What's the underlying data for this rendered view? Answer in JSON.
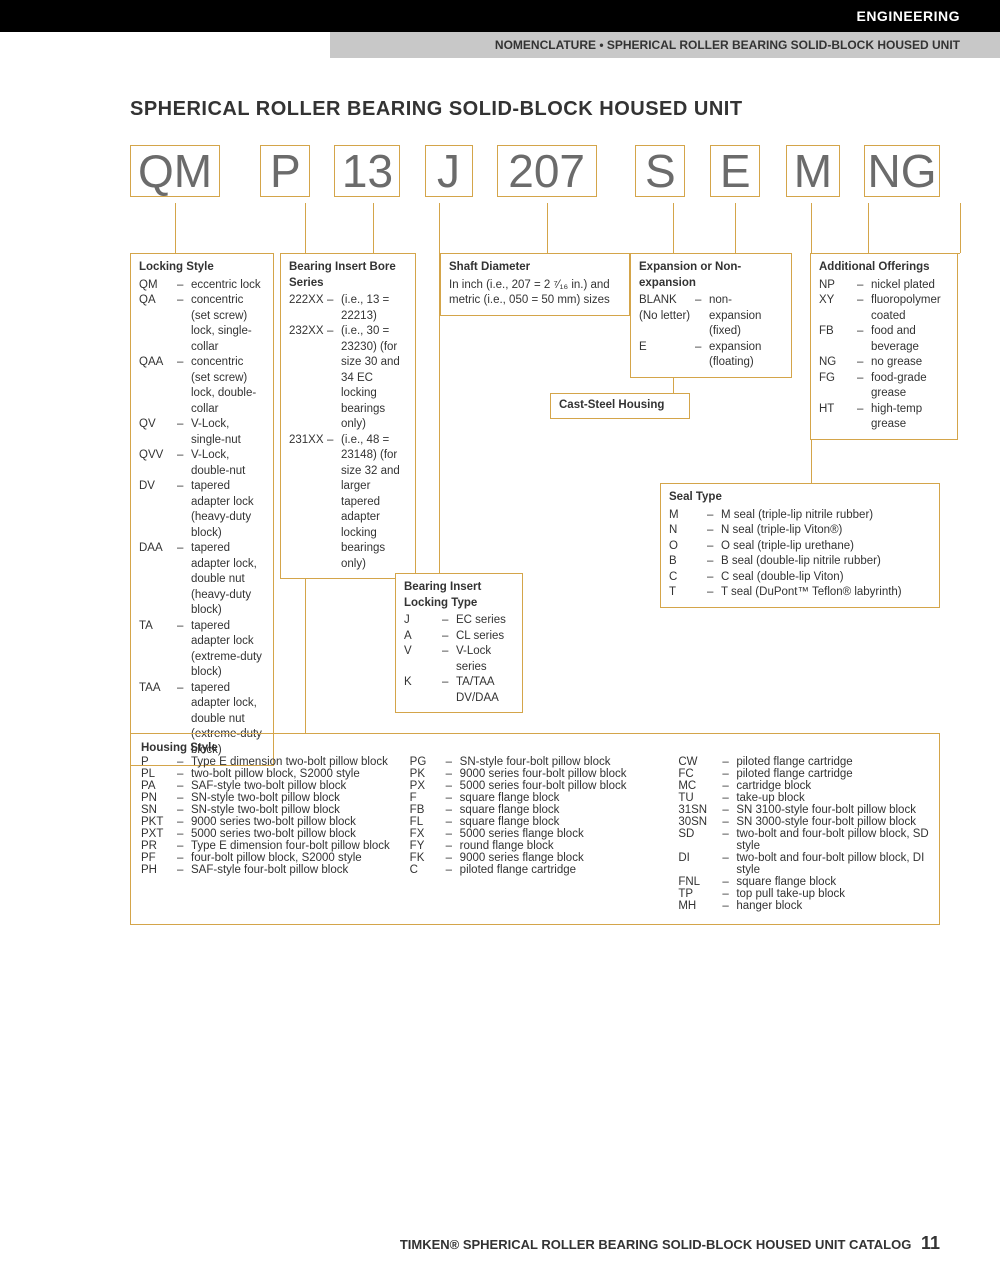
{
  "header": {
    "section": "ENGINEERING",
    "subtitle": "NOMENCLATURE • SPHERICAL ROLLER BEARING SOLID-BLOCK HOUSED UNIT"
  },
  "title": "SPHERICAL ROLLER BEARING SOLID-BLOCK HOUSED UNIT",
  "code": {
    "qm": "QM",
    "p": "P",
    "n13": "13",
    "j": "J",
    "n207": "207",
    "s": "S",
    "e": "E",
    "m": "M",
    "ng": "NG"
  },
  "locking_style": {
    "title": "Locking Style",
    "items": [
      {
        "c": "QM",
        "t": "eccentric lock"
      },
      {
        "c": "QA",
        "t": "concentric (set screw) lock, single-collar"
      },
      {
        "c": "QAA",
        "t": "concentric (set screw) lock, double-collar"
      },
      {
        "c": "QV",
        "t": "V-Lock, single-nut"
      },
      {
        "c": "QVV",
        "t": "V-Lock, double-nut"
      },
      {
        "c": "DV",
        "t": "tapered adapter lock (heavy-duty block)"
      },
      {
        "c": "DAA",
        "t": "tapered adapter lock, double nut (heavy-duty block)"
      },
      {
        "c": "TA",
        "t": "tapered adapter lock (extreme-duty block)"
      },
      {
        "c": "TAA",
        "t": "tapered adapter lock, double nut (extreme-duty block)"
      }
    ]
  },
  "bore_series": {
    "title": "Bearing Insert Bore Series",
    "items": [
      {
        "c": "222XX",
        "t": "(i.e., 13 = 22213)"
      },
      {
        "c": "232XX",
        "t": "(i.e., 30 = 23230) (for size 30 and 34 EC locking bearings only)"
      },
      {
        "c": "231XX",
        "t": "(i.e., 48 = 23148) (for size 32 and larger tapered adapter locking bearings only)"
      }
    ]
  },
  "locking_type": {
    "title": "Bearing Insert Locking Type",
    "items": [
      {
        "c": "J",
        "t": "EC series"
      },
      {
        "c": "A",
        "t": "CL series"
      },
      {
        "c": "V",
        "t": "V-Lock series"
      },
      {
        "c": "K",
        "t": "TA/TAA DV/DAA"
      }
    ]
  },
  "shaft": {
    "title": "Shaft Diameter",
    "text": "In inch (i.e., 207 = 2 ⁷⁄₁₆ in.) and metric (i.e., 050 = 50 mm) sizes"
  },
  "cast_steel": {
    "title": "Cast-Steel Housing"
  },
  "expansion": {
    "title": "Expansion or Non-expansion",
    "items": [
      {
        "c": "BLANK (No letter)",
        "t": "non-expansion (fixed)"
      },
      {
        "c": "E",
        "t": "expansion (floating)"
      }
    ]
  },
  "seal": {
    "title": "Seal Type",
    "items": [
      {
        "c": "M",
        "t": "M seal (triple-lip nitrile rubber)"
      },
      {
        "c": "N",
        "t": "N seal (triple-lip Viton®)"
      },
      {
        "c": "O",
        "t": "O seal (triple-lip urethane)"
      },
      {
        "c": "B",
        "t": "B seal (double-lip nitrile rubber)"
      },
      {
        "c": "C",
        "t": "C seal (double-lip Viton)"
      },
      {
        "c": "T",
        "t": "T seal (DuPont™ Teflon® labyrinth)"
      }
    ]
  },
  "additional": {
    "title": "Additional Offerings",
    "items": [
      {
        "c": "NP",
        "t": "nickel plated"
      },
      {
        "c": "XY",
        "t": "fluoropolymer coated"
      },
      {
        "c": "FB",
        "t": "food and beverage"
      },
      {
        "c": "NG",
        "t": "no grease"
      },
      {
        "c": "FG",
        "t": "food-grade grease"
      },
      {
        "c": "HT",
        "t": "high-temp grease"
      }
    ]
  },
  "housing": {
    "title": "Housing Style",
    "col1": [
      {
        "c": "P",
        "t": "Type E dimension two-bolt pillow block"
      },
      {
        "c": "PL",
        "t": "two-bolt pillow block, S2000 style"
      },
      {
        "c": "PA",
        "t": "SAF-style two-bolt pillow block"
      },
      {
        "c": "PN",
        "t": "SN-style two-bolt pillow block"
      },
      {
        "c": "SN",
        "t": "SN-style two-bolt pillow block"
      },
      {
        "c": "PKT",
        "t": "9000 series two-bolt pillow block"
      },
      {
        "c": "PXT",
        "t": "5000 series two-bolt pillow block"
      },
      {
        "c": "PR",
        "t": "Type E dimension four-bolt pillow block"
      },
      {
        "c": "PF",
        "t": "four-bolt pillow block, S2000 style"
      },
      {
        "c": "PH",
        "t": "SAF-style four-bolt pillow block"
      }
    ],
    "col2": [
      {
        "c": "PG",
        "t": "SN-style four-bolt pillow block"
      },
      {
        "c": "PK",
        "t": "9000 series four-bolt pillow block"
      },
      {
        "c": "PX",
        "t": "5000 series four-bolt pillow block"
      },
      {
        "c": "F",
        "t": "square flange block"
      },
      {
        "c": "FB",
        "t": "square flange block"
      },
      {
        "c": "FL",
        "t": "square flange block"
      },
      {
        "c": "FX",
        "t": "5000 series flange block"
      },
      {
        "c": "FY",
        "t": "round flange block"
      },
      {
        "c": "FK",
        "t": "9000 series flange block"
      },
      {
        "c": "C",
        "t": "piloted flange cartridge"
      }
    ],
    "col3": [
      {
        "c": "CW",
        "t": "piloted flange cartridge"
      },
      {
        "c": "FC",
        "t": "piloted flange cartridge"
      },
      {
        "c": "MC",
        "t": "cartridge block"
      },
      {
        "c": "TU",
        "t": "take-up block"
      },
      {
        "c": "31SN",
        "t": "SN 3100-style four-bolt pillow block"
      },
      {
        "c": "30SN",
        "t": "SN 3000-style four-bolt pillow block"
      },
      {
        "c": "SD",
        "t": "two-bolt and four-bolt pillow block, SD style"
      },
      {
        "c": "DI",
        "t": "two-bolt and four-bolt pillow block, DI style"
      },
      {
        "c": "FNL",
        "t": "square flange block"
      },
      {
        "c": "TP",
        "t": "top pull take-up block"
      },
      {
        "c": "MH",
        "t": "hanger block"
      }
    ]
  },
  "footer": {
    "text": "TIMKEN® SPHERICAL ROLLER BEARING SOLID-BLOCK HOUSED UNIT CATALOG",
    "page": "11"
  }
}
